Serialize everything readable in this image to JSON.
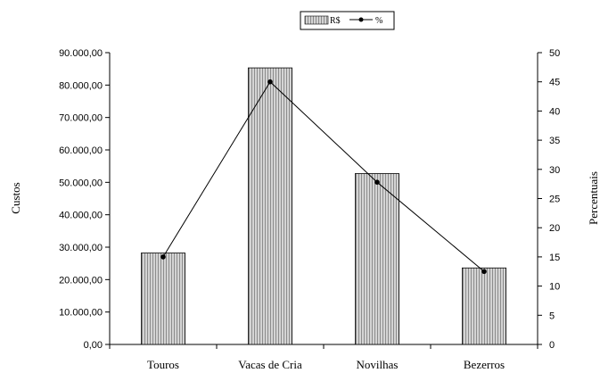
{
  "chart_data": {
    "type": "bar",
    "categories": [
      "Touros",
      "Vacas de Cria",
      "Novilhas",
      "Bezerros"
    ],
    "series": [
      {
        "name": "R$",
        "type": "bar",
        "axis": "left",
        "values": [
          28200,
          85300,
          52700,
          23600
        ],
        "color": "#b8b8b8"
      },
      {
        "name": "%",
        "type": "line",
        "axis": "right",
        "values": [
          15,
          45,
          27.8,
          12.5
        ],
        "color": "#000000"
      }
    ],
    "ylabel": "Custos",
    "y2label": "Percentuais",
    "ylim": [
      0,
      90000
    ],
    "y2lim": [
      0,
      50
    ],
    "yticks": [
      "0,00",
      "10.000,00",
      "20.000,00",
      "30.000,00",
      "40.000,00",
      "50.000,00",
      "60.000,00",
      "70.000,00",
      "80.000,00",
      "90.000,00"
    ],
    "y2ticks": [
      "0",
      "5",
      "10",
      "15",
      "20",
      "25",
      "30",
      "35",
      "40",
      "45",
      "50"
    ],
    "grid": false,
    "legend_position": "top-center"
  }
}
